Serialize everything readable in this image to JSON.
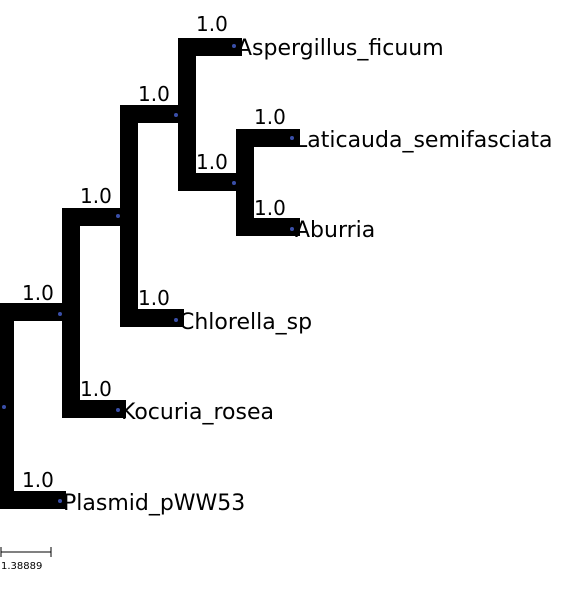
{
  "tree": {
    "leaves": [
      {
        "id": "aspergillus",
        "label": "Aspergillus_ficuum",
        "support": "1.0"
      },
      {
        "id": "laticauda",
        "label": "Laticauda_semifasciata",
        "support": "1.0"
      },
      {
        "id": "aburria",
        "label": "Aburria",
        "support": "1.0"
      },
      {
        "id": "chlorella",
        "label": "Chlorella_sp",
        "support": "1.0"
      },
      {
        "id": "kocuria",
        "label": "Kocuria_rosea",
        "support": "1.0"
      },
      {
        "id": "plasmid",
        "label": "Plasmid_pWW53",
        "support": "1.0"
      }
    ],
    "internal_nodes": [
      {
        "id": "n-lat-abu",
        "support": "1.0"
      },
      {
        "id": "n-asp-clade",
        "support": "1.0"
      },
      {
        "id": "n-chl-clade",
        "support": "1.0"
      },
      {
        "id": "n-koc-clade",
        "support": "1.0"
      }
    ],
    "branch_color": "#000000",
    "node_color": "#3a4fa8"
  },
  "scale_bar": {
    "label": "1.38889"
  }
}
